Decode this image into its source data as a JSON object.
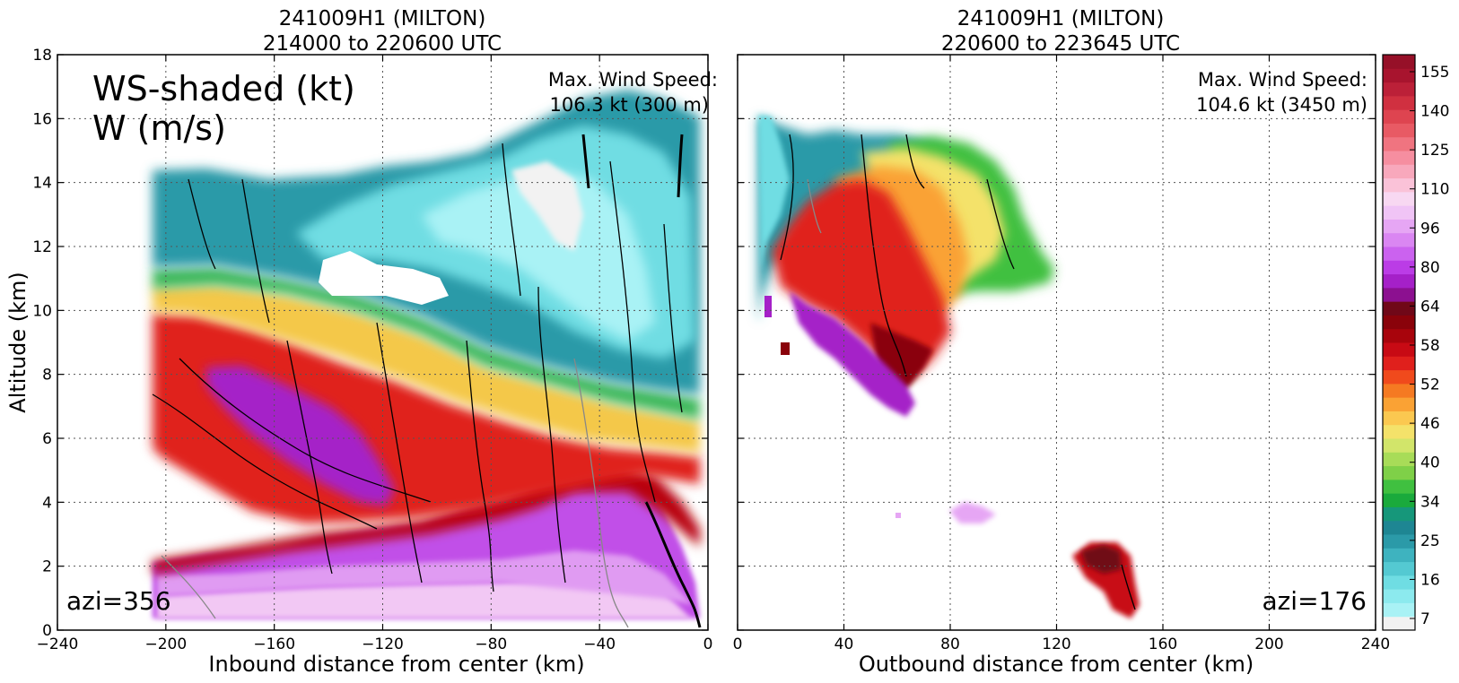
{
  "chart_data": [
    {
      "type": "heatmap",
      "panel": "left",
      "title_line1": "241009H1 (MILTON)",
      "title_line2": "214000 to 220600 UTC",
      "ylabel": "Altitude (km)",
      "xlabel": "Inbound distance from center (km)",
      "xlim": [
        -240,
        0
      ],
      "ylim": [
        0,
        18
      ],
      "xticks": [
        "−240",
        "−200",
        "−160",
        "−120",
        "−80",
        "−40",
        "0"
      ],
      "yticks": [
        "0",
        "2",
        "4",
        "6",
        "8",
        "10",
        "12",
        "14",
        "16",
        "18"
      ],
      "grid": true,
      "legend_line1": "WS-shaded (kt)",
      "legend_line2": "W (m/s)",
      "annotation_line1": "Max. Wind Speed:",
      "annotation_line2": "106.3 kt (300 m)",
      "azimuth_label": "azi=356",
      "data_extent": {
        "x_min": -208,
        "x_max": -3,
        "y_min": 0.3,
        "y_max": 16.5
      }
    },
    {
      "type": "heatmap",
      "panel": "right",
      "title_line1": "241009H1 (MILTON)",
      "title_line2": "220600 to 223645 UTC",
      "xlabel": "Outbound distance from center (km)",
      "xlim": [
        0,
        240
      ],
      "ylim": [
        0,
        18
      ],
      "xticks": [
        "0",
        "40",
        "80",
        "120",
        "160",
        "200",
        "240"
      ],
      "grid": true,
      "annotation_line1": "Max. Wind Speed:",
      "annotation_line2": "104.6 kt (3450 m)",
      "azimuth_label": "azi=176",
      "data_extent": {
        "x_min": 5,
        "x_max": 150,
        "y_min": 0.6,
        "y_max": 16.1
      }
    }
  ],
  "colorbar": {
    "labels": [
      "155",
      "140",
      "125",
      "110",
      "96",
      "80",
      "64",
      "58",
      "52",
      "46",
      "40",
      "34",
      "25",
      "16",
      "7"
    ],
    "colors_bottom_to_top": [
      "#f2f2f2",
      "#a9f2f5",
      "#8ceaee",
      "#6fdde3",
      "#54c9d2",
      "#3eb3bf",
      "#2b9aa8",
      "#1e8693",
      "#16977a",
      "#1aaa3c",
      "#40c040",
      "#7fd048",
      "#a8dc58",
      "#d2e56a",
      "#f4e26a",
      "#fbc850",
      "#faa234",
      "#f57a22",
      "#f04a1c",
      "#e0201c",
      "#c80a14",
      "#a8040c",
      "#8a020a",
      "#700818",
      "#8c1090",
      "#a520c8",
      "#bb3ce6",
      "#cb62ef",
      "#da86f2",
      "#e6a6f4",
      "#f0c4f6",
      "#f8d8f2",
      "#fac2d8",
      "#f8a8bc",
      "#f68ea0",
      "#f07480",
      "#e85a64",
      "#de4450",
      "#d03040",
      "#bc2038",
      "#a8142e",
      "#961028"
    ]
  }
}
